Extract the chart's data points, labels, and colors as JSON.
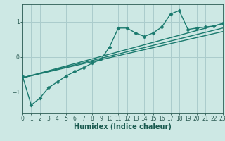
{
  "xlabel": "Humidex (Indice chaleur)",
  "background_color": "#cde8e4",
  "grid_color": "#aacccc",
  "line_color": "#1a7a6e",
  "xlim": [
    0,
    23
  ],
  "ylim": [
    -1.6,
    1.5
  ],
  "yticks": [
    -1,
    0,
    1
  ],
  "xticks": [
    0,
    1,
    2,
    3,
    4,
    5,
    6,
    7,
    8,
    9,
    10,
    11,
    12,
    13,
    14,
    15,
    16,
    17,
    18,
    19,
    20,
    21,
    22,
    23
  ],
  "main_x": [
    0,
    1,
    2,
    3,
    4,
    5,
    6,
    7,
    8,
    9,
    10,
    11,
    12,
    13,
    14,
    15,
    16,
    17,
    18,
    19,
    20,
    21,
    22,
    23
  ],
  "main_y": [
    -0.55,
    -1.38,
    -1.18,
    -0.88,
    -0.72,
    -0.55,
    -0.42,
    -0.32,
    -0.18,
    -0.08,
    0.28,
    0.82,
    0.82,
    0.68,
    0.58,
    0.68,
    0.85,
    1.22,
    1.32,
    0.78,
    0.82,
    0.85,
    0.88,
    0.95
  ],
  "line1_x": [
    0,
    23
  ],
  "line1_y": [
    -0.6,
    0.95
  ],
  "line2_x": [
    0,
    23
  ],
  "line2_y": [
    -0.6,
    0.82
  ],
  "line3_x": [
    0,
    23
  ],
  "line3_y": [
    -0.6,
    0.72
  ],
  "marker": "D",
  "marker_size": 2.5,
  "line_width": 1.0,
  "tick_fontsize": 5.5,
  "label_fontsize": 7.0
}
